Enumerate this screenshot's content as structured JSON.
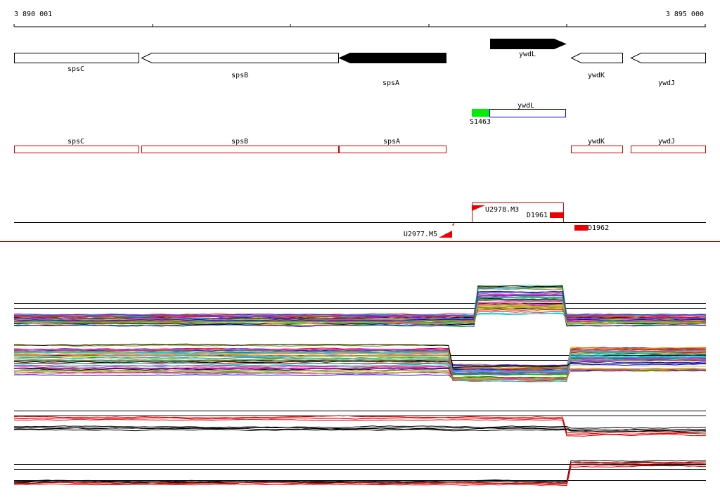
{
  "ruler": {
    "start": "3 890 001",
    "end": "3 895 000"
  },
  "genes": [
    {
      "label": "spsC"
    },
    {
      "label": "spsB"
    },
    {
      "label": "spsA"
    },
    {
      "label": "ywdL"
    },
    {
      "label": "ywdK"
    },
    {
      "label": "ywdJ"
    }
  ],
  "features": [
    {
      "label": "ywdL"
    },
    {
      "label": "S1463"
    }
  ],
  "regions": [
    {
      "label": "spsC"
    },
    {
      "label": "spsB"
    },
    {
      "label": "spsA"
    },
    {
      "label": "ywdK"
    },
    {
      "label": "ywdJ"
    }
  ],
  "segments": [
    {
      "label": "U2978.M3"
    },
    {
      "label": "D1961"
    },
    {
      "label": "U2977.M5"
    },
    {
      "label": "D1962"
    }
  ]
}
